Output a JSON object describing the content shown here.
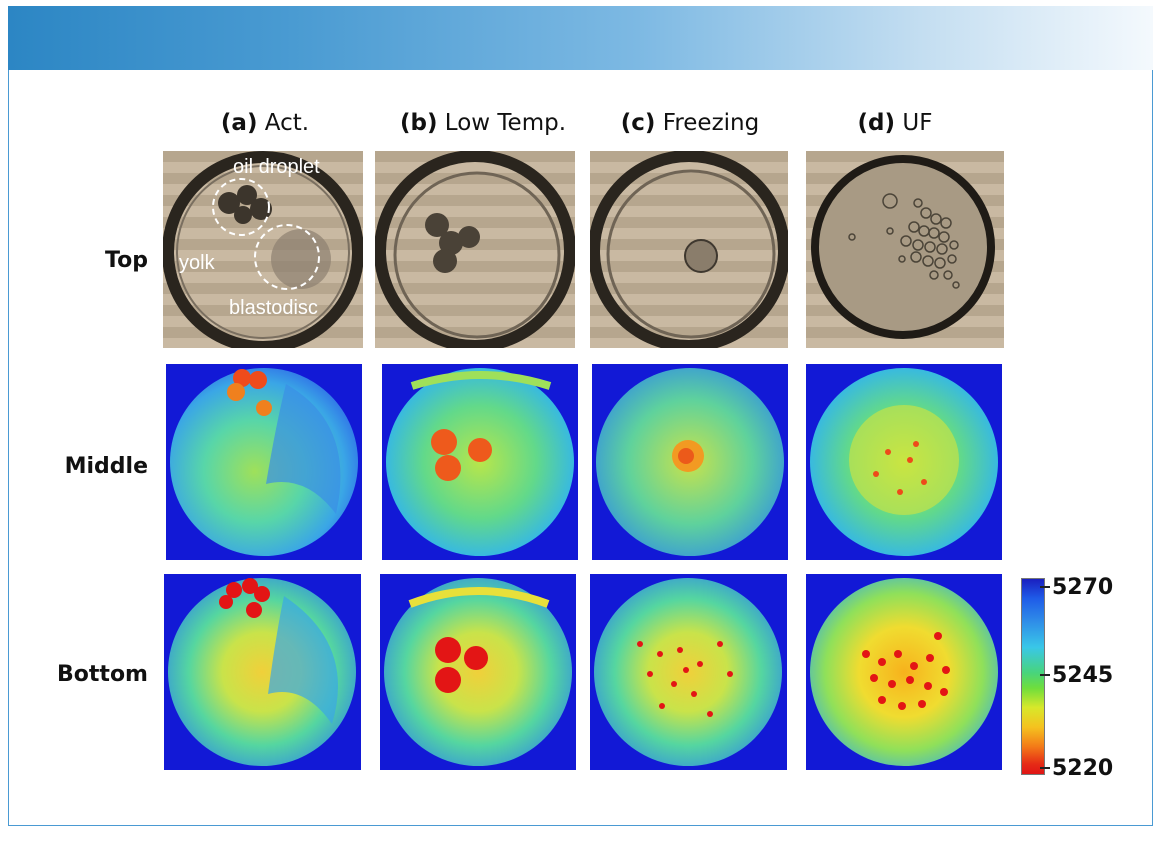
{
  "columns": [
    {
      "letter": "(a)",
      "name": "Act."
    },
    {
      "letter": "(b)",
      "name": "Low Temp."
    },
    {
      "letter": "(c)",
      "name": "Freezing"
    },
    {
      "letter": "(d)",
      "name": "UF"
    }
  ],
  "rows": [
    "Top",
    "Middle",
    "Bottom"
  ],
  "annotations": {
    "oil_droplet": "oil droplet",
    "yolk": "yolk",
    "blastodisc": "blastodisc"
  },
  "colorbar": {
    "max": "5270",
    "mid": "5245",
    "min": "5220"
  },
  "colors": {
    "header_start": "#2c86c4",
    "frame_border": "#4a9ad3",
    "map_background": "#1219d6"
  }
}
